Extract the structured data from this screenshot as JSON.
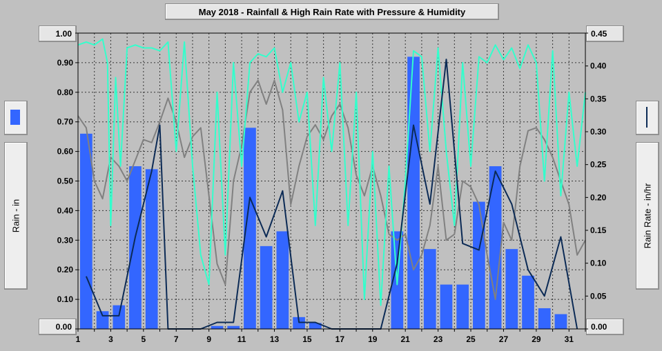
{
  "chart_data": {
    "type": "bar",
    "title": "May 2018 - Rainfall & High Rain Rate with Pressure & Humidity",
    "left_axis": {
      "title": "Rain - in",
      "ylim": [
        0,
        1.0
      ],
      "ticks": [
        "0.00",
        "0.10",
        "0.20",
        "0.30",
        "0.40",
        "0.50",
        "0.60",
        "0.70",
        "0.80",
        "0.90",
        "1.00"
      ],
      "top_label": "1.00",
      "bottom_label": "0.00"
    },
    "right_axis": {
      "title": "Rain Rate - in/hr",
      "ylim": [
        0,
        0.45
      ],
      "ticks": [
        "0.00",
        "0.05",
        "0.10",
        "0.15",
        "0.20",
        "0.25",
        "0.30",
        "0.35",
        "0.40",
        "0.45"
      ],
      "top_label": "0.45",
      "bottom_label": "0.00"
    },
    "x_ticks": [
      "1",
      "3",
      "5",
      "7",
      "9",
      "11",
      "13",
      "15",
      "17",
      "19",
      "21",
      "23",
      "25",
      "27",
      "29",
      "31"
    ],
    "xlim": [
      1,
      32
    ],
    "grid": true,
    "colors": {
      "rain_bars": "#3366ff",
      "rain_rate": "#0b2a55",
      "pressure": "#808080",
      "humidity": "#33ffcc",
      "background": "#c0c0c0",
      "plot_bg": "#c0c0c0"
    },
    "series": [
      {
        "name": "Rain",
        "axis": "left",
        "style": "bar",
        "days": [
          1,
          2,
          3,
          4,
          5,
          6,
          7,
          8,
          9,
          10,
          11,
          12,
          13,
          14,
          15,
          16,
          17,
          18,
          19,
          20,
          21,
          22,
          23,
          24,
          25,
          26,
          27,
          28,
          29,
          30,
          31
        ],
        "values": [
          0.66,
          0.06,
          0.08,
          0.55,
          0.54,
          0.0,
          0.0,
          0.0,
          0.01,
          0.01,
          0.68,
          0.28,
          0.33,
          0.04,
          0.02,
          0.0,
          0.0,
          0.0,
          0.0,
          0.33,
          0.92,
          0.27,
          0.15,
          0.15,
          0.43,
          0.55,
          0.27,
          0.18,
          0.07,
          0.05,
          0.0
        ]
      },
      {
        "name": "High Rain Rate",
        "axis": "right",
        "style": "line",
        "points": [
          [
            1.5,
            0.08
          ],
          [
            2.5,
            0.02
          ],
          [
            3.5,
            0.02
          ],
          [
            4.5,
            0.14
          ],
          [
            5.5,
            0.24
          ],
          [
            6.0,
            0.31
          ],
          [
            6.5,
            0.0
          ],
          [
            7.5,
            0.0
          ],
          [
            8.5,
            0.0
          ],
          [
            9.5,
            0.01
          ],
          [
            10.5,
            0.01
          ],
          [
            11.5,
            0.2
          ],
          [
            12.5,
            0.14
          ],
          [
            13.5,
            0.21
          ],
          [
            14.5,
            0.01
          ],
          [
            15.5,
            0.01
          ],
          [
            16.5,
            0.0
          ],
          [
            17.5,
            0.0
          ],
          [
            18.5,
            0.0
          ],
          [
            19.5,
            0.0
          ],
          [
            20.5,
            0.1
          ],
          [
            21.5,
            0.31
          ],
          [
            22.5,
            0.19
          ],
          [
            23.5,
            0.41
          ],
          [
            24.5,
            0.13
          ],
          [
            25.5,
            0.12
          ],
          [
            26.5,
            0.24
          ],
          [
            27.5,
            0.19
          ],
          [
            28.5,
            0.09
          ],
          [
            29.5,
            0.05
          ],
          [
            30.5,
            0.14
          ],
          [
            31.5,
            0.0
          ]
        ]
      },
      {
        "name": "Pressure",
        "axis": "left",
        "style": "line",
        "points": [
          [
            1.0,
            0.72
          ],
          [
            1.5,
            0.68
          ],
          [
            2.0,
            0.5
          ],
          [
            2.5,
            0.44
          ],
          [
            3.0,
            0.58
          ],
          [
            3.5,
            0.55
          ],
          [
            4.0,
            0.5
          ],
          [
            4.5,
            0.57
          ],
          [
            5.0,
            0.64
          ],
          [
            5.5,
            0.63
          ],
          [
            6.0,
            0.7
          ],
          [
            6.5,
            0.78
          ],
          [
            7.0,
            0.7
          ],
          [
            7.5,
            0.58
          ],
          [
            8.0,
            0.65
          ],
          [
            8.5,
            0.68
          ],
          [
            9.0,
            0.45
          ],
          [
            9.5,
            0.22
          ],
          [
            10.0,
            0.15
          ],
          [
            10.5,
            0.5
          ],
          [
            11.0,
            0.62
          ],
          [
            11.5,
            0.8
          ],
          [
            12.0,
            0.84
          ],
          [
            12.5,
            0.76
          ],
          [
            13.0,
            0.84
          ],
          [
            13.5,
            0.74
          ],
          [
            14.0,
            0.42
          ],
          [
            14.5,
            0.55
          ],
          [
            15.0,
            0.65
          ],
          [
            15.5,
            0.69
          ],
          [
            16.0,
            0.64
          ],
          [
            16.5,
            0.72
          ],
          [
            17.0,
            0.76
          ],
          [
            17.5,
            0.68
          ],
          [
            18.0,
            0.52
          ],
          [
            18.5,
            0.45
          ],
          [
            19.0,
            0.55
          ],
          [
            19.5,
            0.45
          ],
          [
            20.0,
            0.32
          ],
          [
            20.5,
            0.3
          ],
          [
            21.0,
            0.32
          ],
          [
            21.5,
            0.2
          ],
          [
            22.0,
            0.25
          ],
          [
            22.5,
            0.35
          ],
          [
            23.0,
            0.55
          ],
          [
            23.5,
            0.3
          ],
          [
            24.0,
            0.32
          ],
          [
            24.5,
            0.5
          ],
          [
            25.0,
            0.48
          ],
          [
            25.5,
            0.42
          ],
          [
            26.0,
            0.25
          ],
          [
            26.5,
            0.1
          ],
          [
            27.0,
            0.36
          ],
          [
            27.5,
            0.3
          ],
          [
            28.0,
            0.55
          ],
          [
            28.5,
            0.67
          ],
          [
            29.0,
            0.68
          ],
          [
            29.5,
            0.64
          ],
          [
            30.0,
            0.58
          ],
          [
            30.5,
            0.5
          ],
          [
            31.0,
            0.42
          ],
          [
            31.5,
            0.25
          ],
          [
            32.0,
            0.3
          ]
        ]
      },
      {
        "name": "Humidity",
        "axis": "left",
        "style": "line",
        "points": [
          [
            1.0,
            0.96
          ],
          [
            1.5,
            0.97
          ],
          [
            2.0,
            0.96
          ],
          [
            2.5,
            0.98
          ],
          [
            2.8,
            0.9
          ],
          [
            3.0,
            0.35
          ],
          [
            3.3,
            0.85
          ],
          [
            3.6,
            0.55
          ],
          [
            4.0,
            0.95
          ],
          [
            4.5,
            0.96
          ],
          [
            5.0,
            0.95
          ],
          [
            5.5,
            0.95
          ],
          [
            6.0,
            0.94
          ],
          [
            6.5,
            0.97
          ],
          [
            7.0,
            0.6
          ],
          [
            7.5,
            0.97
          ],
          [
            8.0,
            0.55
          ],
          [
            8.5,
            0.25
          ],
          [
            9.0,
            0.15
          ],
          [
            9.5,
            0.8
          ],
          [
            10.0,
            0.25
          ],
          [
            10.5,
            0.9
          ],
          [
            11.0,
            0.55
          ],
          [
            11.5,
            0.9
          ],
          [
            12.0,
            0.93
          ],
          [
            12.5,
            0.92
          ],
          [
            13.0,
            0.95
          ],
          [
            13.5,
            0.8
          ],
          [
            14.0,
            0.9
          ],
          [
            14.5,
            0.7
          ],
          [
            15.0,
            0.8
          ],
          [
            15.5,
            0.35
          ],
          [
            16.0,
            0.85
          ],
          [
            16.5,
            0.6
          ],
          [
            17.0,
            0.9
          ],
          [
            17.5,
            0.35
          ],
          [
            18.0,
            0.8
          ],
          [
            18.5,
            0.1
          ],
          [
            19.0,
            0.6
          ],
          [
            19.5,
            0.08
          ],
          [
            20.0,
            0.55
          ],
          [
            20.5,
            0.15
          ],
          [
            21.0,
            0.5
          ],
          [
            21.5,
            0.94
          ],
          [
            22.0,
            0.92
          ],
          [
            22.5,
            0.6
          ],
          [
            23.0,
            0.95
          ],
          [
            23.5,
            0.6
          ],
          [
            24.0,
            0.35
          ],
          [
            24.5,
            0.9
          ],
          [
            25.0,
            0.55
          ],
          [
            25.5,
            0.92
          ],
          [
            26.0,
            0.9
          ],
          [
            26.5,
            0.96
          ],
          [
            27.0,
            0.91
          ],
          [
            27.5,
            0.95
          ],
          [
            28.0,
            0.88
          ],
          [
            28.5,
            0.96
          ],
          [
            29.0,
            0.9
          ],
          [
            29.5,
            0.5
          ],
          [
            30.0,
            0.94
          ],
          [
            30.5,
            0.45
          ],
          [
            31.0,
            0.8
          ],
          [
            31.5,
            0.55
          ],
          [
            32.0,
            0.8
          ]
        ]
      }
    ]
  }
}
